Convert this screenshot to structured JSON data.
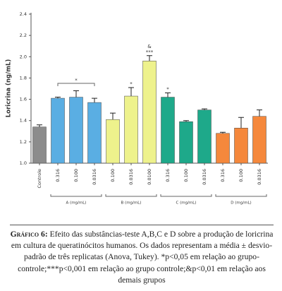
{
  "chart_data": {
    "type": "bar",
    "y_label": "Loricrina (ng/mL)",
    "categories": [
      "Controle",
      "0.316",
      "0.100",
      "0.0316",
      "0.100",
      "0.0316",
      "0.0100",
      "0.316",
      "0.100",
      "0.0316",
      "0.316",
      "0.100",
      "0.0316"
    ],
    "values": [
      1.34,
      1.61,
      1.62,
      1.57,
      1.41,
      1.63,
      1.96,
      1.62,
      1.39,
      1.5,
      1.28,
      1.33,
      1.44
    ],
    "errors": [
      0.02,
      0.01,
      0.06,
      0.04,
      0.06,
      0.08,
      0.05,
      0.04,
      0.01,
      0.01,
      0.01,
      0.1,
      0.06
    ],
    "colors": [
      "#8c8c8c",
      "#5aaee3",
      "#5aaee3",
      "#5aaee3",
      "#eef28c",
      "#eef28c",
      "#eef28c",
      "#1ea98a",
      "#1ea98a",
      "#1ea98a",
      "#f5883c",
      "#f5883c",
      "#f5883c"
    ],
    "annotations": [
      [],
      [],
      [],
      [],
      [],
      [
        "*"
      ],
      [
        "&",
        "***"
      ],
      [
        "*"
      ],
      [],
      [],
      [],
      [],
      []
    ],
    "groups": [
      {
        "label": "A (mg/mL)",
        "annotation": "*"
      },
      {
        "label": "B (mg/mL)"
      },
      {
        "label": "C (mg/mL)"
      },
      {
        "label": "D (mg/mL)"
      }
    ],
    "ylim": [
      1.0,
      2.4
    ],
    "yticks": [
      {
        "value": 1.0,
        "label": "1.0"
      },
      1.2,
      1.4,
      1.6,
      1.8,
      {
        "value": 2.0,
        "label": "2.0"
      },
      2.2,
      2.4
    ]
  },
  "caption": {
    "label": "Gráfico 6:",
    "text": "Efeito das substâncias-teste A,B,C e D sobre a produção de loricrina em cultura de queratinócitos humanos. Os dados representam a média ± desvio-padrão de três replicatas (Anova, Tukey). *p<0,05 em relação ao grupo-controle;***p<0,001 em relação ao grupo controle;&p<0,01 em relação aos demais grupos"
  }
}
